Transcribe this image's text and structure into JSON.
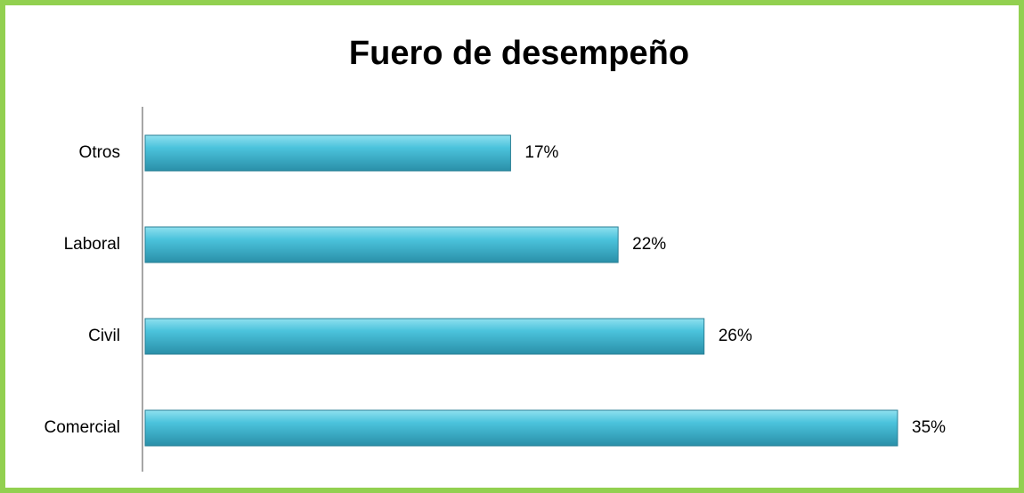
{
  "chart_data": {
    "type": "bar",
    "orientation": "horizontal",
    "title": "Fuero de desempeño",
    "categories": [
      "Otros",
      "Laboral",
      "Civil",
      "Comercial"
    ],
    "values": [
      17,
      22,
      26,
      35
    ],
    "value_labels": [
      "17%",
      "22%",
      "26%",
      "35%"
    ],
    "color": "#4bc3dc"
  }
}
